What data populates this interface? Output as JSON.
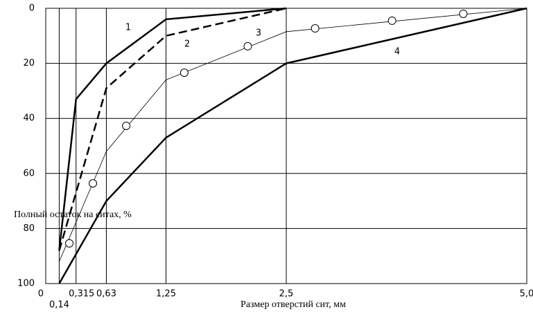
{
  "chart_data": {
    "type": "line",
    "x_label": "Размер отверстий сит, мм",
    "y_label": "Полный остаток на ситах, %",
    "xlim": [
      0,
      5
    ],
    "xticks": [
      0,
      {
        "value": 0.14,
        "label": "0,14"
      },
      {
        "value": 0.315,
        "label": "0,315"
      },
      {
        "value": 0.63,
        "label": "0,63"
      },
      {
        "value": 1.25,
        "label": "1,25"
      },
      {
        "value": 2.5,
        "label": "2,5"
      },
      {
        "value": 5,
        "label": "5,0"
      }
    ],
    "ylim": [
      0,
      100
    ],
    "yticks": [
      0,
      20,
      40,
      60,
      80,
      100
    ],
    "y_inverted": true,
    "grid": true,
    "series": [
      {
        "name": "1",
        "color": "#000000",
        "line_style": "solid",
        "line_width": 2.5,
        "x": [
          0.14,
          0.315,
          0.63,
          1.25,
          2.5
        ],
        "values": [
          88,
          33,
          20,
          4,
          0
        ]
      },
      {
        "name": "2",
        "color": "#000000",
        "line_style": "dashed",
        "line_width": 2.5,
        "x": [
          0.14,
          0.63,
          1.25,
          2.5
        ],
        "values": [
          88,
          29,
          10,
          0
        ]
      },
      {
        "name": "3",
        "color": "#000000",
        "line_style": "solid",
        "line_width": 0.8,
        "x": [
          0.14,
          0.63,
          1.25,
          2.5,
          5
        ],
        "values": [
          92,
          52,
          26,
          8.5,
          0
        ],
        "markers": {
          "x": [
            0.245,
            0.49,
            0.836,
            1.44,
            2.1,
            2.8,
            3.6,
            4.34
          ],
          "values": [
            85.4,
            63.6,
            42.7,
            23.4,
            13.8,
            7.3,
            4.5,
            2
          ]
        }
      },
      {
        "name": "4",
        "color": "#000000",
        "line_style": "solid",
        "line_width": 2.5,
        "x": [
          0.14,
          0.63,
          1.25,
          2.5,
          5
        ],
        "values": [
          100,
          70,
          47,
          20,
          0
        ]
      }
    ]
  }
}
